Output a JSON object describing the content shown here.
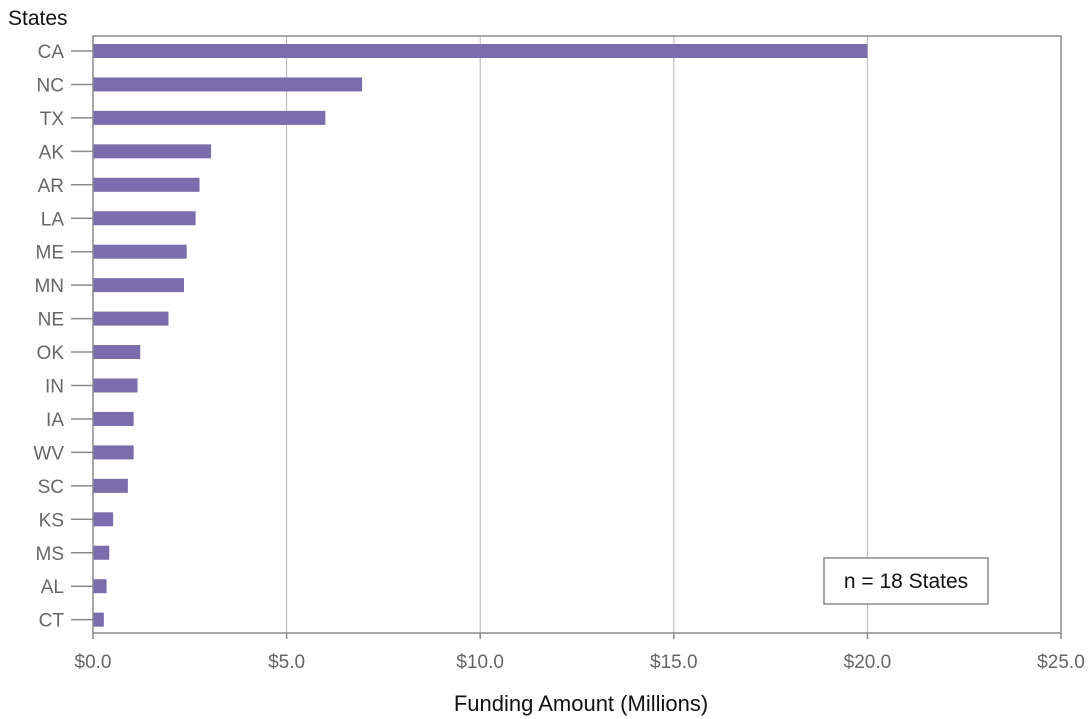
{
  "chart_data": {
    "type": "bar",
    "orientation": "horizontal",
    "ylabel": "States",
    "xlabel": "Funding Amount (Millions)",
    "categories": [
      "CA",
      "NC",
      "TX",
      "AK",
      "AR",
      "LA",
      "ME",
      "MN",
      "NE",
      "OK",
      "IN",
      "IA",
      "WV",
      "SC",
      "KS",
      "MS",
      "AL",
      "CT"
    ],
    "values": [
      20.0,
      6.95,
      6.0,
      3.05,
      2.75,
      2.65,
      2.42,
      2.35,
      1.95,
      1.22,
      1.15,
      1.05,
      1.05,
      0.9,
      0.52,
      0.42,
      0.35,
      0.28
    ],
    "xlim": [
      0,
      25
    ],
    "xticks": [
      0,
      5,
      10,
      15,
      20,
      25
    ],
    "xtick_labels": [
      "$0.0",
      "$5.0",
      "$10.0",
      "$15.0",
      "$20.0",
      "$25.0"
    ],
    "grid": "vertical",
    "annotation": "n = 18 States",
    "annotation_position": "bottom-right",
    "bar_color": "#7a6cad"
  }
}
